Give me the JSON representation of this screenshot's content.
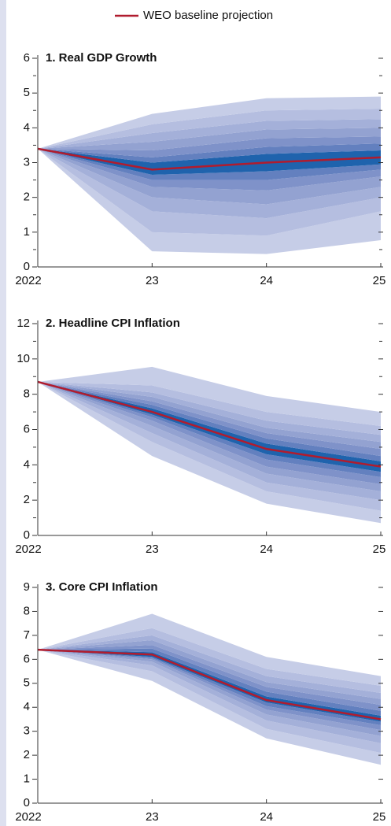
{
  "legend": {
    "label": "WEO baseline projection",
    "color": "#b01c2e"
  },
  "fan_colors": [
    "#c6cde7",
    "#b5bee0",
    "#a4b0d9",
    "#93a2d1",
    "#7f92c9",
    "#6380bf",
    "#1f63ad",
    "#6380bf",
    "#7f92c9",
    "#93a2d1",
    "#a4b0d9",
    "#b5bee0",
    "#c6cde7"
  ],
  "chart_data": [
    {
      "type": "fan",
      "title": "1. Real GDP Growth",
      "categories": [
        "2022",
        "23",
        "24",
        "25"
      ],
      "baseline": [
        3.4,
        2.8,
        3.0,
        3.15
      ],
      "fan": [
        [
          3.4,
          0.45,
          0.37,
          0.77
        ],
        [
          3.4,
          1.0,
          0.9,
          1.6
        ],
        [
          3.4,
          1.6,
          1.4,
          2.0
        ],
        [
          3.4,
          2.0,
          1.8,
          2.3
        ],
        [
          3.4,
          2.3,
          2.2,
          2.6
        ],
        [
          3.4,
          2.5,
          2.5,
          2.8
        ],
        [
          3.4,
          2.65,
          2.75,
          2.95
        ],
        [
          3.4,
          3.0,
          3.25,
          3.35
        ],
        [
          3.4,
          3.15,
          3.45,
          3.55
        ],
        [
          3.4,
          3.35,
          3.7,
          3.75
        ],
        [
          3.4,
          3.6,
          3.95,
          4.0
        ],
        [
          3.4,
          3.85,
          4.2,
          4.25
        ],
        [
          3.4,
          4.1,
          4.5,
          4.55
        ],
        [
          3.4,
          4.4,
          4.85,
          4.9
        ]
      ],
      "ylim": [
        0,
        6
      ],
      "yticks": [
        0,
        1,
        2,
        3,
        4,
        5,
        6
      ],
      "yminorticks": [
        0.5,
        1.5,
        2.5,
        3.5,
        4.5,
        5.5
      ]
    },
    {
      "type": "fan",
      "title": "2. Headline CPI Inflation",
      "categories": [
        "2022",
        "23",
        "24",
        "25"
      ],
      "baseline": [
        8.7,
        7.0,
        4.9,
        3.9
      ],
      "fan": [
        [
          8.7,
          4.5,
          1.8,
          0.7
        ],
        [
          8.7,
          5.3,
          2.5,
          1.4
        ],
        [
          8.7,
          5.8,
          3.0,
          2.0
        ],
        [
          8.7,
          6.2,
          3.5,
          2.5
        ],
        [
          8.7,
          6.5,
          3.9,
          2.9
        ],
        [
          8.7,
          6.7,
          4.3,
          3.3
        ],
        [
          8.7,
          6.85,
          4.6,
          3.6
        ],
        [
          8.7,
          7.2,
          5.2,
          4.2
        ],
        [
          8.7,
          7.4,
          5.5,
          4.5
        ],
        [
          8.7,
          7.6,
          5.8,
          4.9
        ],
        [
          8.7,
          7.85,
          6.1,
          5.3
        ],
        [
          8.7,
          8.1,
          6.5,
          5.7
        ],
        [
          8.7,
          8.5,
          7.0,
          6.2
        ],
        [
          8.7,
          9.55,
          7.9,
          7.0
        ]
      ],
      "ylim": [
        0,
        12
      ],
      "yticks": [
        0,
        2,
        4,
        6,
        8,
        10,
        12
      ],
      "yminorticks": [
        1,
        3,
        5,
        7,
        9,
        11
      ]
    },
    {
      "type": "fan",
      "title": "3. Core CPI Inflation",
      "categories": [
        "2022",
        "23",
        "24",
        "25"
      ],
      "baseline": [
        6.4,
        6.2,
        4.3,
        3.5
      ],
      "fan": [
        [
          6.4,
          5.1,
          2.7,
          1.6
        ],
        [
          6.4,
          5.5,
          3.1,
          2.1
        ],
        [
          6.4,
          5.75,
          3.45,
          2.5
        ],
        [
          6.4,
          5.9,
          3.7,
          2.8
        ],
        [
          6.4,
          6.0,
          3.9,
          3.05
        ],
        [
          6.4,
          6.05,
          4.05,
          3.25
        ],
        [
          6.4,
          6.1,
          4.2,
          3.4
        ],
        [
          6.4,
          6.3,
          4.45,
          3.65
        ],
        [
          6.4,
          6.45,
          4.65,
          3.85
        ],
        [
          6.4,
          6.6,
          4.85,
          4.1
        ],
        [
          6.4,
          6.8,
          5.05,
          4.35
        ],
        [
          6.4,
          7.0,
          5.3,
          4.6
        ],
        [
          6.4,
          7.3,
          5.6,
          4.9
        ],
        [
          6.4,
          7.9,
          6.1,
          5.3
        ]
      ],
      "ylim": [
        0,
        9
      ],
      "yticks": [
        0,
        1,
        2,
        3,
        4,
        5,
        6,
        7,
        8,
        9
      ]
    }
  ]
}
